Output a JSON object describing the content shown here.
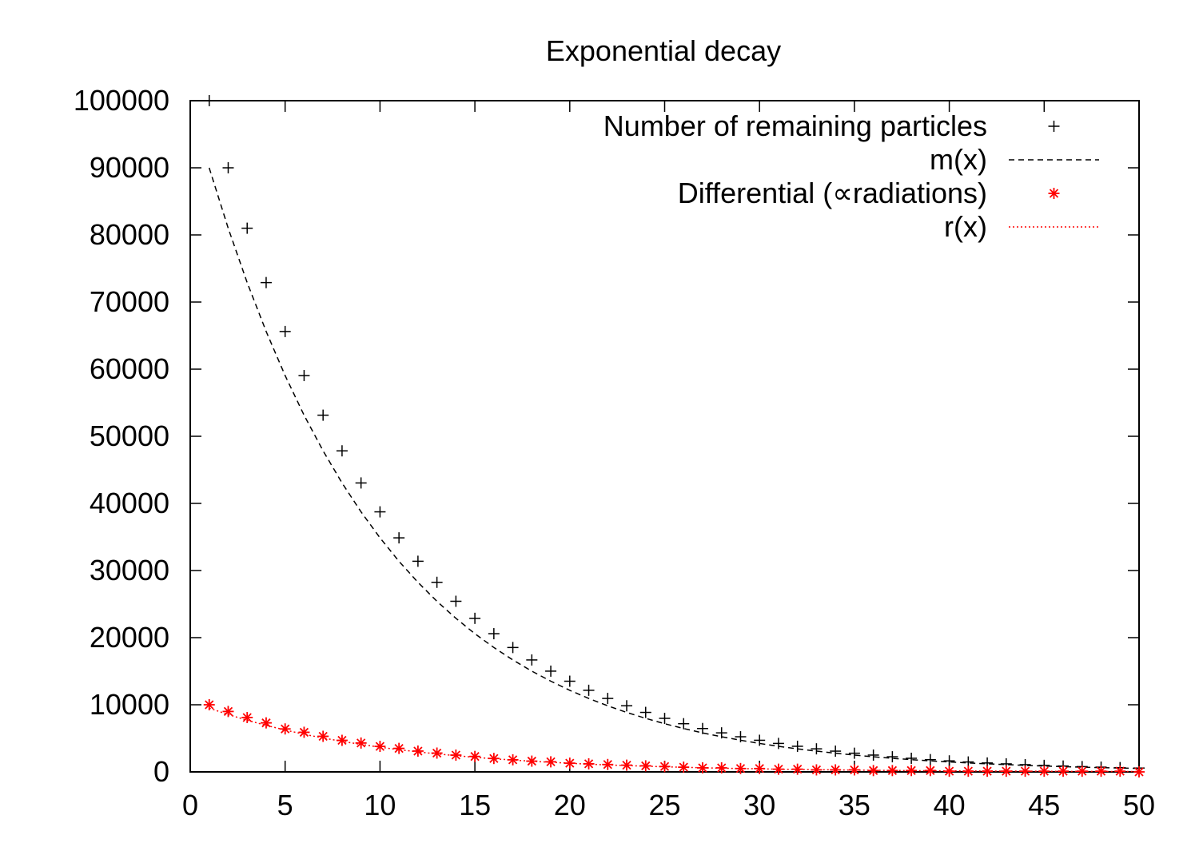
{
  "chart_data": {
    "type": "scatter",
    "title": "Exponential decay",
    "xlabel": "",
    "ylabel": "",
    "xlim": [
      0,
      50
    ],
    "ylim": [
      0,
      100000
    ],
    "x_ticks": [
      0,
      5,
      10,
      15,
      20,
      25,
      30,
      35,
      40,
      45,
      50
    ],
    "y_ticks": [
      0,
      10000,
      20000,
      30000,
      40000,
      50000,
      60000,
      70000,
      80000,
      90000,
      100000
    ],
    "grid": false,
    "legend_position": "top-right",
    "series": [
      {
        "name": "Number of remaining particles",
        "kind": "points",
        "marker": "plus",
        "color": "#000000",
        "x": [
          1,
          2,
          3,
          4,
          5,
          6,
          7,
          8,
          9,
          10,
          11,
          12,
          13,
          14,
          15,
          16,
          17,
          18,
          19,
          20,
          21,
          22,
          23,
          24,
          25,
          26,
          27,
          28,
          29,
          30,
          31,
          32,
          33,
          34,
          35,
          36,
          37,
          38,
          39,
          40,
          41,
          42,
          43,
          44,
          45,
          46,
          47,
          48,
          49,
          50
        ],
        "values": [
          100000,
          90000,
          81000,
          72900,
          65610,
          59049,
          53144,
          47830,
          43047,
          38742,
          34868,
          31381,
          28243,
          25419,
          22877,
          20589,
          18530,
          16677,
          15009,
          13509,
          12158,
          10942,
          9848,
          8863,
          7977,
          7179,
          6461,
          5815,
          5233,
          4710,
          4239,
          3815,
          3434,
          3090,
          2781,
          2503,
          2253,
          2028,
          1825,
          1642,
          1478,
          1330,
          1197,
          1078,
          970,
          873,
          786,
          707,
          636,
          573
        ]
      },
      {
        "name": "m(x)",
        "kind": "line",
        "dash": "dashed",
        "color": "#000000",
        "x": [
          1,
          2,
          3,
          4,
          5,
          6,
          7,
          8,
          9,
          10,
          11,
          12,
          13,
          14,
          15,
          16,
          17,
          18,
          19,
          20,
          21,
          22,
          23,
          24,
          25,
          26,
          27,
          28,
          29,
          30,
          31,
          32,
          33,
          34,
          35,
          36,
          37,
          38,
          39,
          40,
          41,
          42,
          43,
          44,
          45,
          46,
          47,
          48,
          49,
          50
        ],
        "values": [
          90000,
          81000,
          72900,
          65610,
          59049,
          53144,
          47830,
          43047,
          38742,
          34868,
          31381,
          28243,
          25419,
          22877,
          20589,
          18530,
          16677,
          15009,
          13509,
          12158,
          10942,
          9848,
          8863,
          7977,
          7179,
          6461,
          5815,
          5233,
          4710,
          4239,
          3815,
          3434,
          3090,
          2781,
          2503,
          2253,
          2028,
          1825,
          1642,
          1478,
          1330,
          1197,
          1078,
          970,
          873,
          786,
          707,
          636,
          573,
          515
        ]
      },
      {
        "name": "Differential (∝radiations)",
        "kind": "points",
        "marker": "star",
        "color": "#ff0000",
        "x": [
          1,
          2,
          3,
          4,
          5,
          6,
          7,
          8,
          9,
          10,
          11,
          12,
          13,
          14,
          15,
          16,
          17,
          18,
          19,
          20,
          21,
          22,
          23,
          24,
          25,
          26,
          27,
          28,
          29,
          30,
          31,
          32,
          33,
          34,
          35,
          36,
          37,
          38,
          39,
          40,
          41,
          42,
          43,
          44,
          45,
          46,
          47,
          48,
          49,
          50
        ],
        "values": [
          10000,
          9000,
          8100,
          7300,
          6400,
          5900,
          5300,
          4700,
          4300,
          3800,
          3500,
          3100,
          2800,
          2500,
          2300,
          2000,
          1800,
          1600,
          1500,
          1300,
          1200,
          1100,
          1000,
          900,
          800,
          700,
          600,
          600,
          500,
          500,
          400,
          400,
          300,
          300,
          300,
          200,
          200,
          200,
          200,
          100,
          100,
          100,
          100,
          100,
          100,
          100,
          100,
          100,
          100,
          0
        ]
      },
      {
        "name": "r(x)",
        "kind": "line",
        "dash": "dotted",
        "color": "#ff0000",
        "x": [
          1,
          2,
          3,
          4,
          5,
          6,
          7,
          8,
          9,
          10,
          11,
          12,
          13,
          14,
          15,
          16,
          17,
          18,
          19,
          20,
          21,
          22,
          23,
          24,
          25,
          26,
          27,
          28,
          29,
          30,
          31,
          32,
          33,
          34,
          35,
          36,
          37,
          38,
          39,
          40,
          41,
          42,
          43,
          44,
          45,
          46,
          47,
          48,
          49,
          50
        ],
        "values": [
          9500,
          8550,
          7695,
          6926,
          6233,
          5610,
          5049,
          4544,
          4090,
          3681,
          3313,
          2981,
          2683,
          2415,
          2174,
          1956,
          1760,
          1584,
          1426,
          1283,
          1155,
          1040,
          936,
          842,
          758,
          682,
          614,
          552,
          497,
          447,
          403,
          362,
          326,
          294,
          264,
          238,
          214,
          193,
          173,
          156,
          141,
          126,
          114,
          102,
          92,
          83,
          75,
          67,
          60,
          54
        ]
      }
    ]
  }
}
